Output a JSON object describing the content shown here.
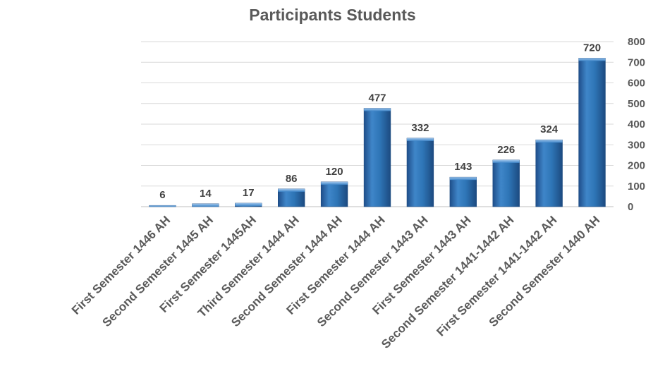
{
  "chart_data": {
    "type": "bar",
    "title": "Participants Students",
    "categories": [
      "First Semester 1446 AH",
      "Second Semester 1445 AH",
      "First Semester 1445AH",
      "Third Semester 1444 AH",
      "Second Semester 1444 AH",
      "First Semester 1444 AH",
      "Second Semester 1443 AH",
      "First Semester 1443 AH",
      "Second Semester 1441-1442 AH",
      "First Semester 1441-1442 AH",
      "Second Semester 1440 AH"
    ],
    "values": [
      6,
      14,
      17,
      86,
      120,
      477,
      332,
      143,
      226,
      324,
      720
    ],
    "data_labels": [
      "6",
      "14",
      "17",
      "86",
      "120",
      "477",
      "332",
      "143",
      "226",
      "324",
      "720"
    ],
    "yticks": [
      "0",
      "100",
      "200",
      "300",
      "400",
      "500",
      "600",
      "700",
      "800"
    ],
    "ylim": [
      0,
      800
    ],
    "y_axis_side": "right",
    "grid": true,
    "bar_color": "#2e75b6"
  }
}
